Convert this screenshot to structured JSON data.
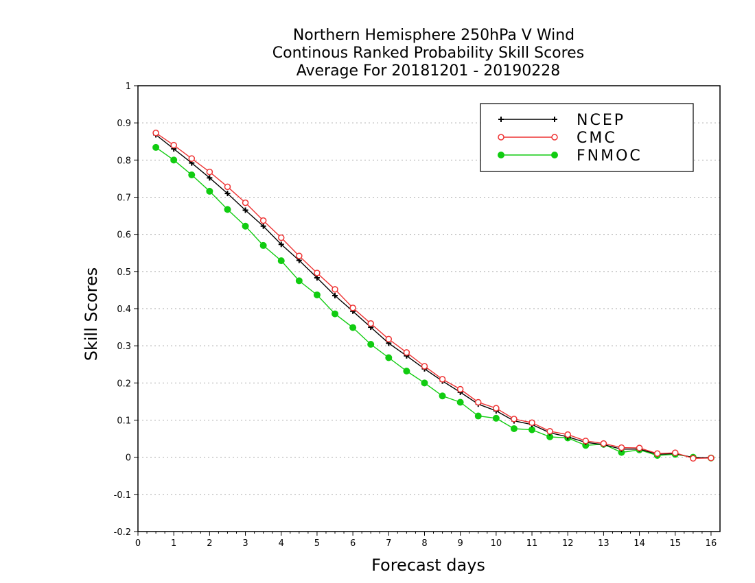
{
  "chart_data": {
    "type": "line",
    "title_lines": [
      "Northern Hemisphere 250hPa V Wind",
      "Continous Ranked Probability Skill Scores",
      "Average For 20181201 - 20190228"
    ],
    "xlabel": "Forecast days",
    "ylabel": "Skill Scores",
    "xlim": [
      0,
      16.25
    ],
    "ylim": [
      -0.2,
      1
    ],
    "x_ticks": [
      0,
      1,
      2,
      3,
      4,
      5,
      6,
      7,
      8,
      9,
      10,
      11,
      12,
      13,
      14,
      15,
      16
    ],
    "y_ticks": [
      -0.2,
      -0.1,
      0,
      0.1,
      0.2,
      0.3,
      0.4,
      0.5,
      0.6,
      0.7,
      0.8,
      0.9,
      1
    ],
    "y_tick_labels": [
      "-0.2",
      "-0.1",
      "0",
      "0.1",
      "0.2",
      "0.3",
      "0.4",
      "0.5",
      "0.6",
      "0.7",
      "0.8",
      "0.9",
      "1"
    ],
    "grid": "horizontal dotted",
    "legend_position": "top-right",
    "x": [
      0.5,
      1,
      1.5,
      2,
      2.5,
      3,
      3.5,
      4,
      4.5,
      5,
      5.5,
      6,
      6.5,
      7,
      7.5,
      8,
      8.5,
      9,
      9.5,
      10,
      10.5,
      11,
      11.5,
      12,
      12.5,
      13,
      13.5,
      14,
      14.5,
      15,
      15.5,
      16
    ],
    "series": [
      {
        "name": "NCEP",
        "color": "#000000",
        "marker": "plus",
        "values": [
          0.868,
          0.83,
          0.792,
          0.752,
          0.71,
          0.665,
          0.622,
          0.573,
          0.53,
          0.483,
          0.435,
          0.393,
          0.35,
          0.307,
          0.273,
          0.238,
          0.205,
          0.175,
          0.143,
          0.125,
          0.098,
          0.088,
          0.066,
          0.055,
          0.04,
          0.034,
          0.022,
          0.022,
          0.008,
          0.01,
          -0.001,
          -0.001
        ]
      },
      {
        "name": "CMC",
        "color": "#ee3333",
        "marker": "open-circle",
        "values": [
          0.873,
          0.84,
          0.804,
          0.768,
          0.728,
          0.685,
          0.637,
          0.591,
          0.542,
          0.496,
          0.452,
          0.402,
          0.36,
          0.318,
          0.282,
          0.245,
          0.21,
          0.183,
          0.148,
          0.132,
          0.103,
          0.093,
          0.07,
          0.061,
          0.044,
          0.037,
          0.026,
          0.025,
          0.01,
          0.012,
          -0.003,
          -0.002
        ]
      },
      {
        "name": "FNMOC",
        "color": "#11cc11",
        "marker": "filled-circle",
        "values": [
          0.834,
          0.8,
          0.76,
          0.716,
          0.667,
          0.622,
          0.57,
          0.529,
          0.475,
          0.437,
          0.386,
          0.349,
          0.304,
          0.268,
          0.232,
          0.2,
          0.165,
          0.148,
          0.111,
          0.105,
          0.077,
          0.074,
          0.055,
          0.052,
          0.032,
          0.035,
          0.013,
          0.02,
          0.005,
          0.008,
          0.0,
          -0.002
        ]
      }
    ]
  }
}
